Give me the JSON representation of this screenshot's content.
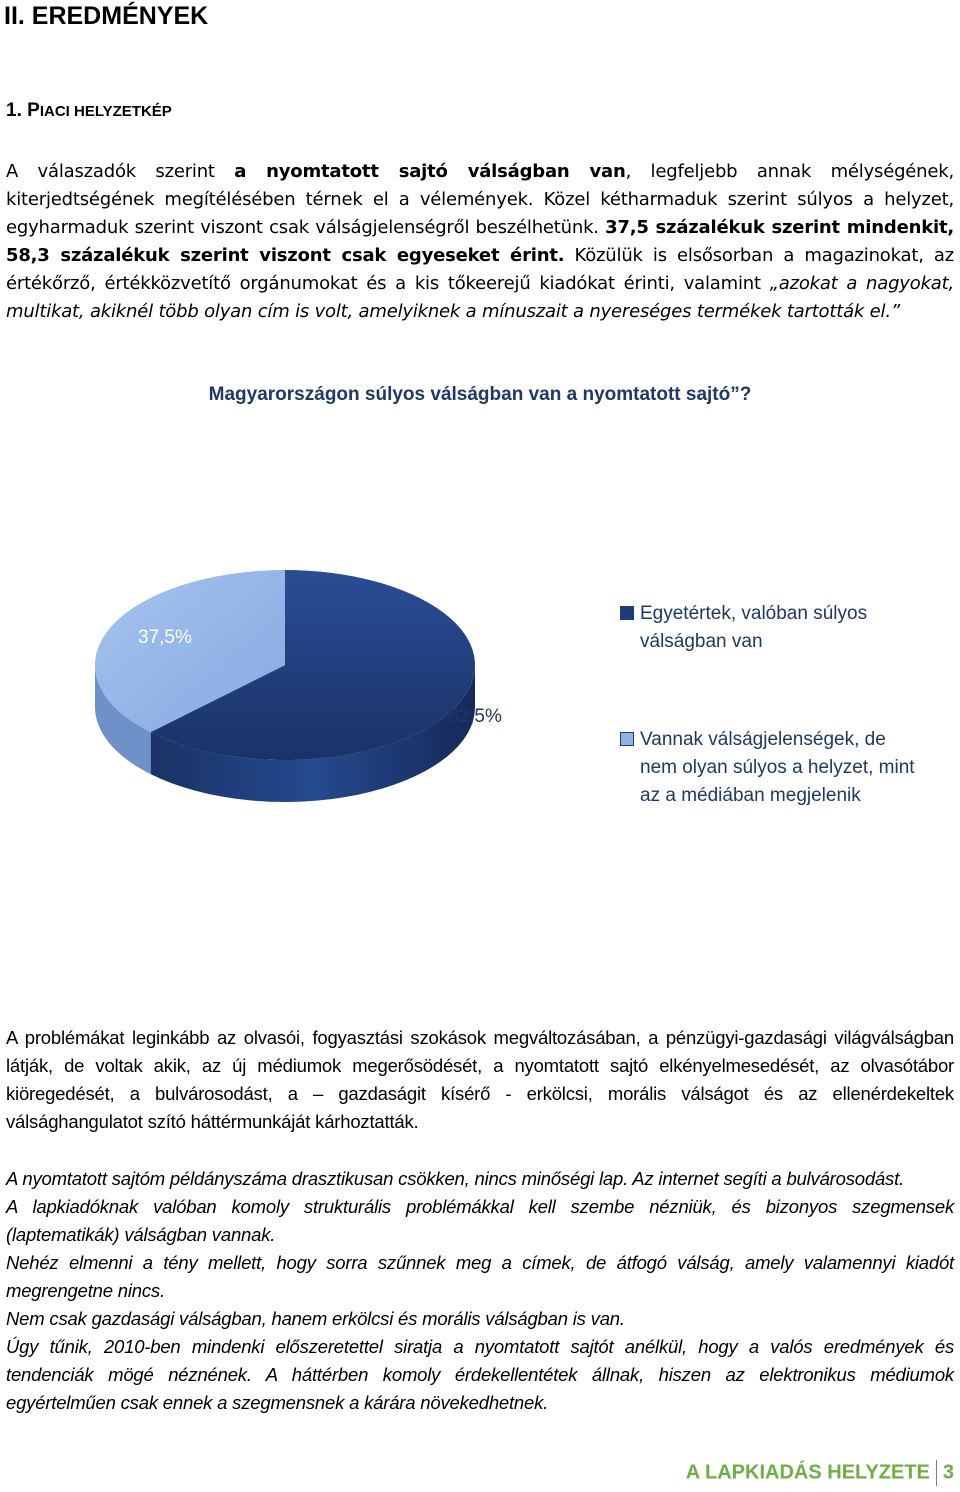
{
  "heading": "II. EREDMÉNYEK",
  "subheading": {
    "num": "1. P",
    "rest": "IACI HELYZETKÉP"
  },
  "para1": {
    "s1": "A válaszadók szerint ",
    "b1": "a nyomtatott sajtó válságban van",
    "s2": ", legfeljebb annak mélységének, kiterjedtségének megítélésében térnek el a vélemények. Közel kétharmaduk szerint súlyos a helyzet, egyharmaduk szerint viszont csak válságjelenségről beszélhetünk. ",
    "b2": "37,5 százalékuk szerint mindenkit, 58,3 százalékuk szerint viszont csak egyeseket érint.",
    "s3": " Közülük is elsősorban a magazinokat, az értékőrző, értékközvetítő orgánumokat és a kis tőkeerejű kiadókat érinti, valamint ",
    "i1": "„azokat a nagyokat, multikat, akiknél több olyan cím is volt, amelyiknek a mínuszait a nyereséges termékek tartották el.”"
  },
  "chart_title": "Magyarországon súlyos válságban van a nyomtatott sajtó”?",
  "chart_data": {
    "type": "pie",
    "title": "Magyarországon súlyos válságban van a nyomtatott sajtó”?",
    "categories": [
      "Egyetértek, valóban súlyos válságban van",
      "Vannak válságjelenségek, de nem olyan súlyos a helyzet, mint az a médiában megjelenik"
    ],
    "values": [
      62.5,
      37.5
    ],
    "labels": [
      "62,5%",
      "37,5%"
    ],
    "colors": [
      "#1f3c7a",
      "#8fb1e6"
    ],
    "legend": "right",
    "style": "3d"
  },
  "legend": {
    "item1": "Egyetértek, valóban súlyos válságban van",
    "item2": "Vannak válságjelenségek, de nem olyan súlyos a helyzet, mint az a médiában megjelenik"
  },
  "para2": "A problémákat leginkább az olvasói, fogyasztási szokások megváltozásában, a pénzügyi-gazdasági világválságban látják, de voltak akik, az új médiumok megerősödését, a nyomtatott sajtó elkényelmesedését, az olvasótábor kiöregedését, a bulvárosodást, a – gazdaságit kísérő - erkölcsi, morális válságot és az ellenérdekeltek válsághangulatot szító háttérmunkáját kárhoztatták.",
  "quotes": [
    "A nyomtatott sajtóm példányszáma drasztikusan csökken, nincs minőségi lap. Az internet segíti a bulvárosodást.",
    "A lapkiadóknak valóban komoly strukturális problémákkal kell szembe nézniük, és bizonyos szegmensek (laptematikák) válságban vannak.",
    "Nehéz elmenni a tény mellett, hogy sorra szűnnek meg a címek, de átfogó válság, amely valamennyi kiadót megrengetne nincs.",
    "Nem csak gazdasági válságban, hanem erkölcsi és morális válságban is van.",
    "Úgy tűnik, 2010-ben mindenki előszeretettel siratja a nyomtatott sajtót anélkül, hogy a valós eredmények és tendenciák mögé néznének. A háttérben komoly érdekellentétek állnak, hiszen az elektronikus médiumok egyértelműen csak ennek a szegmensnek a kárára növekedhetnek."
  ],
  "footer": {
    "title": "A LAPKIADÁS HELYZETE",
    "page": "3"
  }
}
